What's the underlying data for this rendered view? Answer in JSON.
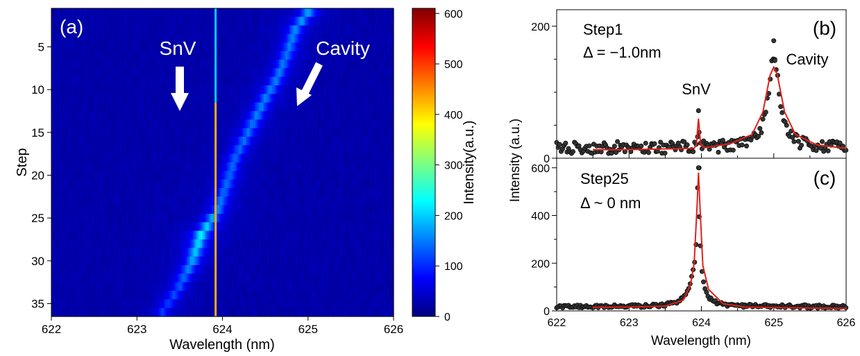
{
  "chart_data": [
    {
      "panel": "(a)",
      "type": "heatmap",
      "xlabel": "Wavelength (nm)",
      "ylabel": "Step",
      "xlim": [
        622,
        626
      ],
      "ylim": [
        1,
        36
      ],
      "y_inverted": true,
      "x_ticks": [
        622,
        623,
        624,
        625,
        626
      ],
      "y_ticks": [
        5,
        10,
        15,
        20,
        25,
        30,
        35
      ],
      "colorbar": {
        "label": "Intensity(a.u.)",
        "range": [
          0,
          610
        ],
        "ticks": [
          0,
          100,
          200,
          300,
          400,
          500,
          600
        ],
        "colormap": "jet"
      },
      "annotations": [
        {
          "text": "SnV",
          "points_to": "emission line at 623.92 nm"
        },
        {
          "text": "Cavity",
          "points_to": "tuning cavity mode"
        }
      ],
      "snv_line": {
        "wavelength_nm": 623.92,
        "intensity_steps_1_11": 200,
        "intensity_steps_12_36": 430
      },
      "cavity_peak": {
        "steps": [
          1,
          3,
          6,
          9,
          12,
          15,
          18,
          21,
          24,
          27,
          30,
          33,
          36
        ],
        "wavelength": [
          625.0,
          624.85,
          624.75,
          624.62,
          624.45,
          624.3,
          624.15,
          624.05,
          623.95,
          623.75,
          623.65,
          623.5,
          623.3
        ],
        "intensity": [
          150,
          130,
          120,
          125,
          130,
          120,
          110,
          110,
          130,
          200,
          150,
          100,
          80
        ]
      },
      "background_level": 25
    },
    {
      "panel": "(b)",
      "type": "scatter",
      "title": "Step1",
      "subtitle": "Δ = −1.0nm",
      "xlim": [
        622,
        626
      ],
      "ylim": [
        0,
        225
      ],
      "y_ticks": [
        0,
        200
      ],
      "labels": [
        {
          "text": "SnV",
          "x": 623.96,
          "y": 82
        },
        {
          "text": "Cavity",
          "x": 625.2,
          "y": 150
        }
      ],
      "data": {
        "baseline": 16,
        "snv_center": 623.96,
        "snv_amplitude": 58,
        "cavity_center": 625.0,
        "cavity_amplitude": 140,
        "cavity_fwhm": 0.18,
        "x_step_nm": 0.0205
      },
      "fit": {
        "x": [
          622.5,
          623.0,
          623.5,
          623.9,
          623.93,
          623.96,
          623.99,
          624.05,
          624.4,
          624.7,
          624.85,
          624.95,
          625.0,
          625.05,
          625.15,
          625.3,
          625.6,
          626.0
        ],
        "y": [
          13,
          13,
          14,
          15,
          20,
          60,
          20,
          16,
          22,
          36,
          70,
          126,
          138,
          126,
          70,
          36,
          20,
          15
        ]
      }
    },
    {
      "panel": "(c)",
      "type": "scatter",
      "title": "Step25",
      "subtitle": "Δ ~ 0 nm",
      "xlabel": "Wavelength (nm)",
      "shared_ylabel": "Intensity (a.u.)",
      "xlim": [
        622,
        626
      ],
      "ylim": [
        0,
        640
      ],
      "x_ticks": [
        622,
        623,
        624,
        625,
        626
      ],
      "y_ticks": [
        0,
        200,
        400,
        600
      ],
      "data": {
        "baseline": 18,
        "peak_center": 623.96,
        "peak_amplitude": 560,
        "peak_fwhm": 0.035,
        "broad_center": 623.92,
        "broad_amplitude": 140,
        "broad_fwhm": 0.2,
        "x_step_nm": 0.0205
      },
      "fit": {
        "x": [
          622.5,
          623.0,
          623.5,
          623.75,
          623.85,
          623.9,
          623.94,
          623.96,
          623.98,
          624.02,
          624.1,
          624.3,
          624.6,
          625.0,
          626.0
        ],
        "y": [
          15,
          16,
          20,
          45,
          110,
          200,
          440,
          580,
          440,
          190,
          90,
          30,
          16,
          14,
          10
        ]
      }
    }
  ]
}
